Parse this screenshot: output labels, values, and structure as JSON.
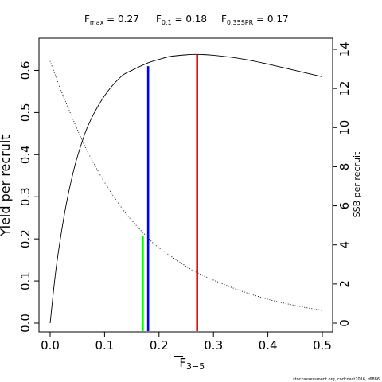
{
  "chart_data": {
    "type": "line",
    "title_refs": [
      {
        "base": "F",
        "sub": "max",
        "value_text": " = 0.27"
      },
      {
        "base": "F",
        "sub": "0.1",
        "value_text": " = 0.18"
      },
      {
        "base": "F",
        "sub": "0.35SPR",
        "value_text": " = 0.17"
      }
    ],
    "xlabel_base": "F",
    "xlabel_sub": "3−5",
    "ylabel_left": "Yield per recruit",
    "ylabel_right": "SSB per recruit",
    "xlim": [
      0,
      0.5
    ],
    "ylim_left": [
      0,
      0.65
    ],
    "ylim_right": [
      0,
      14
    ],
    "x_ticks": [
      0.0,
      0.1,
      0.2,
      0.3,
      0.4,
      0.5
    ],
    "x_tick_labels": [
      "0.0",
      "0.1",
      "0.2",
      "0.3",
      "0.4",
      "0.5"
    ],
    "y_left_ticks": [
      0.0,
      0.1,
      0.2,
      0.3,
      0.4,
      0.5,
      0.6
    ],
    "y_left_tick_labels": [
      "0.0",
      "0.1",
      "0.2",
      "0.3",
      "0.4",
      "0.5",
      "0.6"
    ],
    "y_right_ticks": [
      0,
      2,
      4,
      6,
      8,
      10,
      12,
      14
    ],
    "y_right_tick_labels": [
      "0",
      "2",
      "4",
      "6",
      "8",
      "10",
      "12",
      "14"
    ],
    "series": [
      {
        "axis": "left",
        "style": "solid",
        "x": [
          0,
          0.01,
          0.02,
          0.03,
          0.04,
          0.05,
          0.07,
          0.1,
          0.13,
          0.15,
          0.18,
          0.2,
          0.22,
          0.25,
          0.27,
          0.3,
          0.35,
          0.4,
          0.45,
          0.5
        ],
        "y": [
          0.0,
          0.12,
          0.21,
          0.285,
          0.345,
          0.395,
          0.47,
          0.54,
          0.585,
          0.6,
          0.618,
          0.626,
          0.633,
          0.637,
          0.638,
          0.636,
          0.628,
          0.615,
          0.6,
          0.585
        ]
      },
      {
        "axis": "right",
        "style": "dotted",
        "x": [
          0,
          0.02,
          0.05,
          0.07,
          0.1,
          0.13,
          0.15,
          0.18,
          0.2,
          0.25,
          0.27,
          0.3,
          0.35,
          0.4,
          0.45,
          0.5
        ],
        "y": [
          13.4,
          11.9,
          9.9,
          8.7,
          7.2,
          5.95,
          5.25,
          4.35,
          3.85,
          2.9,
          2.58,
          2.2,
          1.65,
          1.22,
          0.9,
          0.65
        ]
      }
    ],
    "reference_lines": [
      {
        "name": "F0.35SPR",
        "x": 0.17,
        "axis": "right",
        "y_top": 4.45,
        "color": "#00ff00"
      },
      {
        "name": "F0.1",
        "x": 0.18,
        "axis": "left",
        "y_top": 0.61,
        "color": "#0000ff"
      },
      {
        "name": "Fmax",
        "x": 0.27,
        "axis": "left",
        "y_top": 0.638,
        "color": "#ff0000"
      }
    ],
    "footer": "stockassessment.org, codcoast2016, r6886"
  }
}
